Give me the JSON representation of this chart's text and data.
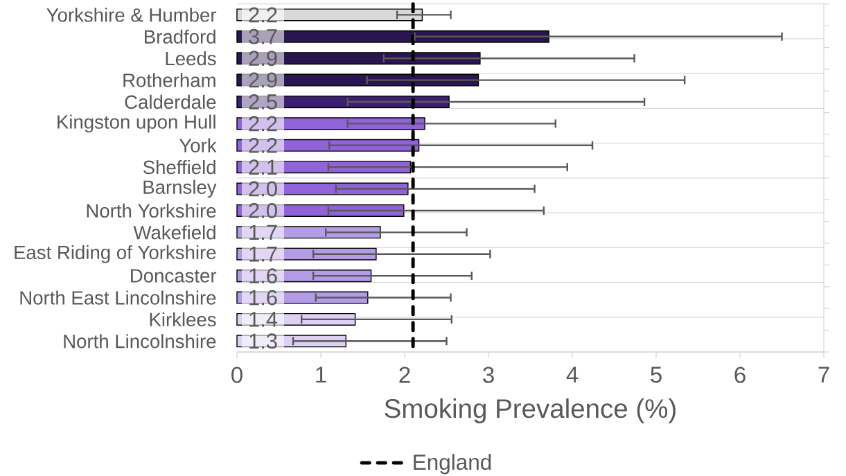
{
  "chart_data": {
    "type": "bar",
    "orientation": "horizontal",
    "categories": [
      "Yorkshire & Humber",
      "Bradford",
      "Leeds",
      "Rotherham",
      "Calderdale",
      "Kingston upon Hull",
      "York",
      "Sheffield",
      "Barnsley",
      "North Yorkshire",
      "Wakefield",
      "East Riding of Yorkshire",
      "Doncaster",
      "North East Lincolnshire",
      "Kirklees",
      "North Lincolnshire"
    ],
    "values": [
      2.21,
      3.72,
      2.9,
      2.88,
      2.53,
      2.24,
      2.17,
      2.07,
      2.04,
      1.99,
      1.71,
      1.66,
      1.6,
      1.56,
      1.41,
      1.3
    ],
    "colors": [
      "#d9d9d9",
      "#291650",
      "#291650",
      "#291650",
      "#3c1f6e",
      "#9063d8",
      "#9063d8",
      "#9063d8",
      "#9063d8",
      "#9063d8",
      "#b49be6",
      "#b49be6",
      "#b49be6",
      "#b49be6",
      "#dcd0f3",
      "#dcd0f3"
    ],
    "errors": [
      [
        1.91,
        2.55
      ],
      [
        2.12,
        6.5
      ],
      [
        1.75,
        4.74
      ],
      [
        1.55,
        5.34
      ],
      [
        1.32,
        4.86
      ],
      [
        1.32,
        3.8
      ],
      [
        1.1,
        4.24
      ],
      [
        1.09,
        3.94
      ],
      [
        1.18,
        3.55
      ],
      [
        1.09,
        3.66
      ],
      [
        1.06,
        2.74
      ],
      [
        0.91,
        3.02
      ],
      [
        0.91,
        2.8
      ],
      [
        0.94,
        2.55
      ],
      [
        0.77,
        2.56
      ],
      [
        0.67,
        2.5
      ]
    ],
    "value_labels": [
      "2.2",
      "3.7",
      "2.9",
      "2.9",
      "2.5",
      "2.2",
      "2.2",
      "2.1",
      "2.0",
      "2.0",
      "1.7",
      "1.7",
      "1.6",
      "1.6",
      "1.4",
      "1.3"
    ],
    "xlabel": "Smoking Prevalence (%)",
    "xlim": [
      0,
      7
    ],
    "xticks": [
      0,
      1,
      2,
      3,
      4,
      5,
      6,
      7
    ],
    "grid": "y",
    "ref_lines": [
      {
        "axis": "x",
        "value": 2.1,
        "label": "England",
        "color": "#000000",
        "line_style": "dashed"
      }
    ],
    "legend": "bottom"
  }
}
